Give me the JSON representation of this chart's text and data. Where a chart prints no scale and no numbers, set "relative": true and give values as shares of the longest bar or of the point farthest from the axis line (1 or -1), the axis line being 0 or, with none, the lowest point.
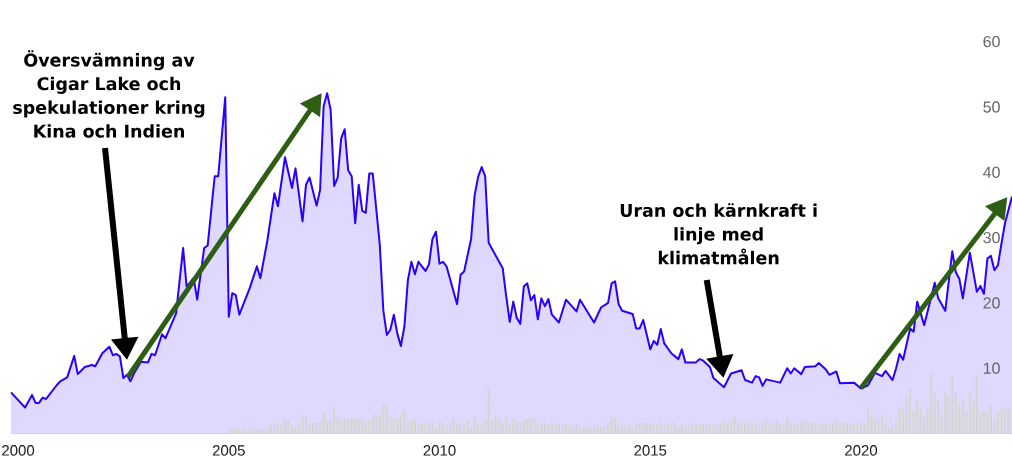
{
  "chart_data": [
    {
      "type": "area",
      "xlim": [
        "1999-11",
        "2023-08"
      ],
      "ylim": [
        0,
        60
      ],
      "xticks": [
        "2000",
        "2005",
        "2010",
        "2015",
        "2020"
      ],
      "yticks": [
        10,
        20,
        30,
        40,
        50,
        60
      ],
      "color": "#2a00ff",
      "x": [
        "1999-11",
        "2000-03",
        "2000-05",
        "2000-06",
        "2000-07",
        "2000-08",
        "2000-09",
        "2000-12",
        "2001-01",
        "2001-03",
        "2001-05",
        "2001-06",
        "2001-08",
        "2001-10",
        "2001-11",
        "2002-01",
        "2002-03",
        "2002-04",
        "2002-05",
        "2002-06",
        "2002-07",
        "2002-08",
        "2002-09",
        "2002-10",
        "2002-12",
        "2003-02",
        "2003-03",
        "2003-04",
        "2003-06",
        "2003-07",
        "2003-10",
        "2003-12",
        "2004-01",
        "2004-03",
        "2004-04",
        "2004-06",
        "2004-07",
        "2004-09",
        "2004-10",
        "2004-12",
        "2005-01",
        "2005-02",
        "2005-03",
        "2005-04",
        "2005-07",
        "2005-09",
        "2005-10",
        "2005-12",
        "2006-02",
        "2006-03",
        "2006-05",
        "2006-07",
        "2006-08",
        "2006-10",
        "2006-11",
        "2006-12",
        "2007-02",
        "2007-03",
        "2007-04",
        "2007-05",
        "2007-06",
        "2007-07",
        "2007-08",
        "2007-09",
        "2007-10",
        "2007-11",
        "2007-12",
        "2008-01",
        "2008-02",
        "2008-03",
        "2008-04",
        "2008-05",
        "2008-06",
        "2008-08",
        "2008-09",
        "2008-10",
        "2008-11",
        "2008-12",
        "2009-01",
        "2009-02",
        "2009-03",
        "2009-04",
        "2009-05",
        "2009-06",
        "2009-07",
        "2009-09",
        "2009-10",
        "2009-11",
        "2009-12",
        "2010-01",
        "2010-02",
        "2010-03",
        "2010-06",
        "2010-07",
        "2010-08",
        "2010-10",
        "2010-11",
        "2010-12",
        "2011-01",
        "2011-02",
        "2011-03",
        "2011-07",
        "2011-08",
        "2011-09",
        "2011-10",
        "2011-11",
        "2011-12",
        "2012-01",
        "2012-02",
        "2012-03",
        "2012-04",
        "2012-05",
        "2012-06",
        "2012-07",
        "2012-08",
        "2012-09",
        "2012-11",
        "2013-01",
        "2013-04",
        "2013-05",
        "2013-09",
        "2013-11",
        "2014-01",
        "2014-02",
        "2014-03",
        "2014-04",
        "2014-05",
        "2014-08",
        "2014-09",
        "2014-10",
        "2014-11",
        "2015-01",
        "2015-02",
        "2015-03",
        "2015-04",
        "2015-05",
        "2015-07",
        "2015-09",
        "2015-10",
        "2015-11",
        "2016-02",
        "2016-03",
        "2016-04",
        "2016-06",
        "2016-07",
        "2016-10",
        "2016-12",
        "2017-03",
        "2017-04",
        "2017-06",
        "2017-07",
        "2017-08",
        "2017-09",
        "2017-10",
        "2018-02",
        "2018-04",
        "2018-05",
        "2018-06",
        "2018-08",
        "2018-09",
        "2018-12",
        "2019-01",
        "2019-03",
        "2019-04",
        "2019-06",
        "2019-07",
        "2019-11",
        "2020-01",
        "2020-03",
        "2020-05",
        "2020-07",
        "2020-08",
        "2020-10",
        "2020-11",
        "2020-12",
        "2021-01",
        "2021-03",
        "2021-04",
        "2021-05",
        "2021-07",
        "2021-10",
        "2021-11",
        "2022-01",
        "2022-03",
        "2022-04",
        "2022-05",
        "2022-06",
        "2022-08",
        "2022-10",
        "2022-11",
        "2022-12",
        "2023-01",
        "2023-02",
        "2023-03",
        "2023-04",
        "2023-05",
        "2023-06",
        "2023-08"
      ],
      "values": [
        6.3,
        4.0,
        5.9,
        4.7,
        4.7,
        5.5,
        5.3,
        7.4,
        8.0,
        8.6,
        11.9,
        9.1,
        10.2,
        10.5,
        10.3,
        12.3,
        13.3,
        12.0,
        12.2,
        11.8,
        8.5,
        9.0,
        8.0,
        9.2,
        11.0,
        10.9,
        12.2,
        12.0,
        15.2,
        14.6,
        18.4,
        28.4,
        22.5,
        23.8,
        20.5,
        28.4,
        28.8,
        39.4,
        39.4,
        51.5,
        17.9,
        21.5,
        21.2,
        18.2,
        22.3,
        25.6,
        23.8,
        29.6,
        36.8,
        34.8,
        42.3,
        37.6,
        40.6,
        32.5,
        38.1,
        39.2,
        34.9,
        37.3,
        50.1,
        52.1,
        49.6,
        37.9,
        39.2,
        45.2,
        46.6,
        40.3,
        39.4,
        32.2,
        38.1,
        34.1,
        33.8,
        39.8,
        39.8,
        28.9,
        18.9,
        15.1,
        15.9,
        18.2,
        15.3,
        13.4,
        16.4,
        23.5,
        26.3,
        24.4,
        26.3,
        24.9,
        25.9,
        29.8,
        30.9,
        26.0,
        26.3,
        25.6,
        19.8,
        24.3,
        24.8,
        29.8,
        36.5,
        39.3,
        40.8,
        39.4,
        29.2,
        25.3,
        21.0,
        17.1,
        20.2,
        17.7,
        16.8,
        22.5,
        23.0,
        20.4,
        21.2,
        17.5,
        20.7,
        19.5,
        20.6,
        18.2,
        17.0,
        20.5,
        18.7,
        20.5,
        17.0,
        19.3,
        20.0,
        23.0,
        23.3,
        19.8,
        18.8,
        18.3,
        16.1,
        16.1,
        17.4,
        12.9,
        14.2,
        13.6,
        16.0,
        13.8,
        12.3,
        11.4,
        12.9,
        10.9,
        10.9,
        11.4,
        11.2,
        10.2,
        8.5,
        7.1,
        9.2,
        9.7,
        8.2,
        7.8,
        8.8,
        8.6,
        7.3,
        8.3,
        7.8,
        10.0,
        9.2,
        10.0,
        9.1,
        10.2,
        10.3,
        10.8,
        9.8,
        9.0,
        9.5,
        7.7,
        7.8,
        6.9,
        7.4,
        9.3,
        8.8,
        9.6,
        8.2,
        10.0,
        12.2,
        11.3,
        16.1,
        15.6,
        20.2,
        16.6,
        23.1,
        20.7,
        18.8,
        27.9,
        24.7,
        23.7,
        20.7,
        27.7,
        21.7,
        22.6,
        21.4,
        26.8,
        27.2,
        25.0,
        25.8,
        29.1,
        32.2,
        36.3
      ],
      "annotations": [
        "Översvämning av Cigar Lake och spekulationer kring Kina och Indien",
        "Uran och kärnkraft i linje med klimatmålen"
      ]
    },
    {
      "type": "bar",
      "relative": true,
      "color": "#d6d6d1",
      "xlim": [
        "1999-11",
        "2023-08"
      ],
      "tick_labels": false,
      "x": [
        "2005-01",
        "2005-02",
        "2005-03",
        "2005-04",
        "2005-05",
        "2005-06",
        "2005-07",
        "2005-08",
        "2005-09",
        "2005-10",
        "2005-11",
        "2005-12",
        "2006-01",
        "2006-02",
        "2006-03",
        "2006-04",
        "2006-05",
        "2006-06",
        "2006-07",
        "2006-08",
        "2006-09",
        "2006-10",
        "2006-11",
        "2006-12",
        "2007-01",
        "2007-02",
        "2007-03",
        "2007-04",
        "2007-05",
        "2007-06",
        "2007-07",
        "2007-08",
        "2007-09",
        "2007-10",
        "2007-11",
        "2007-12",
        "2008-01",
        "2008-02",
        "2008-03",
        "2008-04",
        "2008-05",
        "2008-06",
        "2008-07",
        "2008-08",
        "2008-09",
        "2008-10",
        "2008-11",
        "2008-12",
        "2009-01",
        "2009-02",
        "2009-03",
        "2009-04",
        "2009-05",
        "2009-06",
        "2009-07",
        "2009-08",
        "2009-09",
        "2009-10",
        "2009-11",
        "2009-12",
        "2010-01",
        "2010-02",
        "2010-03",
        "2010-04",
        "2010-05",
        "2010-06",
        "2010-07",
        "2010-08",
        "2010-09",
        "2010-10",
        "2010-11",
        "2010-12",
        "2011-01",
        "2011-02",
        "2011-03",
        "2011-04",
        "2011-05",
        "2011-06",
        "2011-07",
        "2011-08",
        "2011-09",
        "2011-10",
        "2011-11",
        "2011-12",
        "2012-01",
        "2012-02",
        "2012-03",
        "2012-04",
        "2012-05",
        "2012-06",
        "2012-07",
        "2012-08",
        "2012-09",
        "2012-10",
        "2012-11",
        "2012-12",
        "2013-01",
        "2013-02",
        "2013-03",
        "2013-04",
        "2013-05",
        "2013-06",
        "2013-07",
        "2013-08",
        "2013-09",
        "2013-10",
        "2013-11",
        "2013-12",
        "2014-01",
        "2014-02",
        "2014-03",
        "2014-04",
        "2014-05",
        "2014-06",
        "2014-07",
        "2014-08",
        "2014-09",
        "2014-10",
        "2014-11",
        "2014-12",
        "2015-01",
        "2015-02",
        "2015-03",
        "2015-04",
        "2015-05",
        "2015-06",
        "2015-07",
        "2015-08",
        "2015-09",
        "2015-10",
        "2015-11",
        "2015-12",
        "2016-01",
        "2016-02",
        "2016-03",
        "2016-04",
        "2016-05",
        "2016-06",
        "2016-07",
        "2016-08",
        "2016-09",
        "2016-10",
        "2016-11",
        "2016-12",
        "2017-01",
        "2017-02",
        "2017-03",
        "2017-04",
        "2017-05",
        "2017-06",
        "2017-07",
        "2017-08",
        "2017-09",
        "2017-10",
        "2017-11",
        "2017-12",
        "2018-01",
        "2018-02",
        "2018-03",
        "2018-04",
        "2018-05",
        "2018-06",
        "2018-07",
        "2018-08",
        "2018-09",
        "2018-10",
        "2018-11",
        "2018-12",
        "2019-01",
        "2019-02",
        "2019-03",
        "2019-04",
        "2019-05",
        "2019-06",
        "2019-07",
        "2019-08",
        "2019-09",
        "2019-10",
        "2019-11",
        "2019-12",
        "2020-01",
        "2020-02",
        "2020-03",
        "2020-04",
        "2020-05",
        "2020-06",
        "2020-07",
        "2020-08",
        "2020-09",
        "2020-10",
        "2020-11",
        "2020-12",
        "2021-01",
        "2021-02",
        "2021-03",
        "2021-04",
        "2021-05",
        "2021-06",
        "2021-07",
        "2021-08",
        "2021-09",
        "2021-10",
        "2021-11",
        "2021-12",
        "2022-01",
        "2022-02",
        "2022-03",
        "2022-04",
        "2022-05",
        "2022-06",
        "2022-07",
        "2022-08",
        "2022-09",
        "2022-10",
        "2022-11",
        "2022-12",
        "2023-01",
        "2023-02",
        "2023-03",
        "2023-04",
        "2023-05",
        "2023-06",
        "2023-07"
      ],
      "values": [
        0.08,
        0.08,
        0.08,
        0.08,
        0.08,
        0.04,
        0.06,
        0.08,
        0.07,
        0.07,
        0.05,
        0.08,
        0.15,
        0.17,
        0.14,
        0.16,
        0.25,
        0.24,
        0.15,
        0.12,
        0.18,
        0.32,
        0.28,
        0.15,
        0.18,
        0.18,
        0.18,
        0.36,
        0.2,
        0.24,
        0.44,
        0.28,
        0.21,
        0.26,
        0.25,
        0.25,
        0.25,
        0.26,
        0.25,
        0.18,
        0.24,
        0.32,
        0.3,
        0.29,
        0.48,
        0.48,
        0.27,
        0.26,
        0.25,
        0.32,
        0.39,
        0.2,
        0.24,
        0.24,
        0.19,
        0.15,
        0.17,
        0.18,
        0.19,
        0.11,
        0.18,
        0.18,
        0.15,
        0.17,
        0.26,
        0.15,
        0.17,
        0.17,
        0.23,
        0.1,
        0.3,
        0.18,
        0.16,
        0.24,
        0.78,
        0.24,
        0.3,
        0.25,
        0.18,
        0.28,
        0.15,
        0.27,
        0.21,
        0.18,
        0.24,
        0.23,
        0.25,
        0.26,
        0.18,
        0.16,
        0.18,
        0.16,
        0.16,
        0.15,
        0.16,
        0.13,
        0.16,
        0.12,
        0.15,
        0.17,
        0.11,
        0.12,
        0.11,
        0.11,
        0.11,
        0.13,
        0.12,
        0.13,
        0.18,
        0.28,
        0.26,
        0.15,
        0.13,
        0.13,
        0.15,
        0.12,
        0.18,
        0.18,
        0.18,
        0.17,
        0.16,
        0.14,
        0.16,
        0.19,
        0.13,
        0.15,
        0.18,
        0.18,
        0.12,
        0.16,
        0.12,
        0.14,
        0.15,
        0.15,
        0.16,
        0.16,
        0.14,
        0.17,
        0.15,
        0.15,
        0.17,
        0.21,
        0.18,
        0.21,
        0.29,
        0.21,
        0.18,
        0.18,
        0.2,
        0.16,
        0.19,
        0.13,
        0.17,
        0.26,
        0.18,
        0.17,
        0.21,
        0.16,
        0.12,
        0.27,
        0.18,
        0.19,
        0.16,
        0.19,
        0.23,
        0.2,
        0.18,
        0.18,
        0.15,
        0.17,
        0.18,
        0.13,
        0.17,
        0.24,
        0.19,
        0.18,
        0.18,
        0.15,
        0.18,
        0.18,
        0.21,
        0.18,
        0.44,
        0.33,
        0.25,
        0.22,
        0.31,
        0.19,
        0.11,
        0.14,
        0.22,
        0.42,
        0.41,
        0.64,
        0.75,
        0.36,
        0.56,
        0.42,
        0.28,
        0.42,
        1.0,
        0.67,
        0.56,
        0.33,
        0.71,
        0.63,
        0.96,
        0.67,
        0.47,
        0.56,
        0.36,
        0.67,
        0.53,
        0.97,
        0.33,
        0.36,
        0.36,
        0.47,
        0.25,
        0.36,
        0.44,
        0.42,
        0.44
      ]
    }
  ]
}
